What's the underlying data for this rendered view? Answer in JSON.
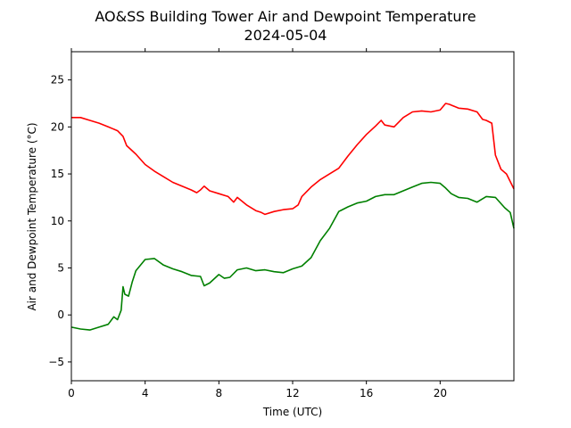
{
  "chart_data": {
    "type": "line",
    "title": "AO&SS Building Tower Air and Dewpoint Temperature",
    "subtitle": "2024-05-04",
    "xlabel": "Time (UTC)",
    "ylabel": "Air and Dewpoint Temperature (°C)",
    "xlim": [
      0,
      24
    ],
    "ylim": [
      -7,
      28
    ],
    "xticks": [
      0,
      4,
      8,
      12,
      16,
      20
    ],
    "xtick_labels": [
      "0",
      "4",
      "8",
      "12",
      "16",
      "20"
    ],
    "yticks": [
      -5,
      0,
      5,
      10,
      15,
      20,
      25
    ],
    "ytick_labels": [
      "−5",
      "0",
      "5",
      "10",
      "15",
      "20",
      "25"
    ],
    "grid": false,
    "series": [
      {
        "color": "#ff0000",
        "x": [
          0,
          0.5,
          1,
          1.5,
          2,
          2.5,
          2.8,
          3,
          3.5,
          4,
          4.5,
          5,
          5.5,
          6,
          6.5,
          6.8,
          7,
          7.2,
          7.5,
          8,
          8.5,
          8.8,
          9,
          9.5,
          10,
          10.3,
          10.5,
          11,
          11.5,
          12,
          12.3,
          12.5,
          13,
          13.5,
          14,
          14.5,
          15,
          15.5,
          16,
          16.5,
          16.8,
          17,
          17.5,
          18,
          18.5,
          19,
          19.5,
          20,
          20.3,
          20.5,
          21,
          21.5,
          22,
          22.3,
          22.5,
          22.8,
          23,
          23.3,
          23.6,
          24
        ],
        "values": [
          21.0,
          21.0,
          20.7,
          20.4,
          20.0,
          19.6,
          19.0,
          18.0,
          17.1,
          16.0,
          15.3,
          14.7,
          14.1,
          13.7,
          13.3,
          13.0,
          13.3,
          13.7,
          13.2,
          12.9,
          12.6,
          12.0,
          12.5,
          11.7,
          11.1,
          10.9,
          10.7,
          11.0,
          11.2,
          11.3,
          11.7,
          12.6,
          13.6,
          14.4,
          15.0,
          15.6,
          16.9,
          18.1,
          19.2,
          20.1,
          20.7,
          20.2,
          20.0,
          21.0,
          21.6,
          21.7,
          21.6,
          21.8,
          22.5,
          22.4,
          22.0,
          21.9,
          21.6,
          20.8,
          20.7,
          20.4,
          17.0,
          15.5,
          15.0,
          13.4
        ]
      },
      {
        "color": "#008000",
        "x": [
          0,
          0.5,
          1,
          1.5,
          2,
          2.3,
          2.5,
          2.7,
          2.8,
          2.9,
          3.1,
          3.3,
          3.5,
          4,
          4.5,
          5,
          5.5,
          6,
          6.5,
          7,
          7.2,
          7.5,
          8,
          8.3,
          8.6,
          9,
          9.5,
          10,
          10.5,
          11,
          11.5,
          12,
          12.5,
          13,
          13.5,
          14,
          14.5,
          15,
          15.5,
          16,
          16.5,
          17,
          17.5,
          18,
          18.5,
          19,
          19.5,
          20,
          20.3,
          20.6,
          21,
          21.5,
          22,
          22.5,
          23,
          23.5,
          23.8,
          24
        ],
        "values": [
          -1.3,
          -1.5,
          -1.6,
          -1.3,
          -1.0,
          -0.2,
          -0.5,
          0.5,
          3.0,
          2.2,
          2.0,
          3.5,
          4.7,
          5.9,
          6.0,
          5.3,
          4.9,
          4.6,
          4.2,
          4.1,
          3.1,
          3.4,
          4.3,
          3.9,
          4.0,
          4.8,
          5.0,
          4.7,
          4.8,
          4.6,
          4.5,
          4.9,
          5.2,
          6.1,
          7.9,
          9.2,
          11.0,
          11.5,
          11.9,
          12.1,
          12.6,
          12.8,
          12.8,
          13.2,
          13.6,
          14.0,
          14.1,
          14.0,
          13.5,
          12.9,
          12.5,
          12.4,
          12.0,
          12.6,
          12.5,
          11.4,
          10.9,
          9.2
        ]
      }
    ]
  }
}
